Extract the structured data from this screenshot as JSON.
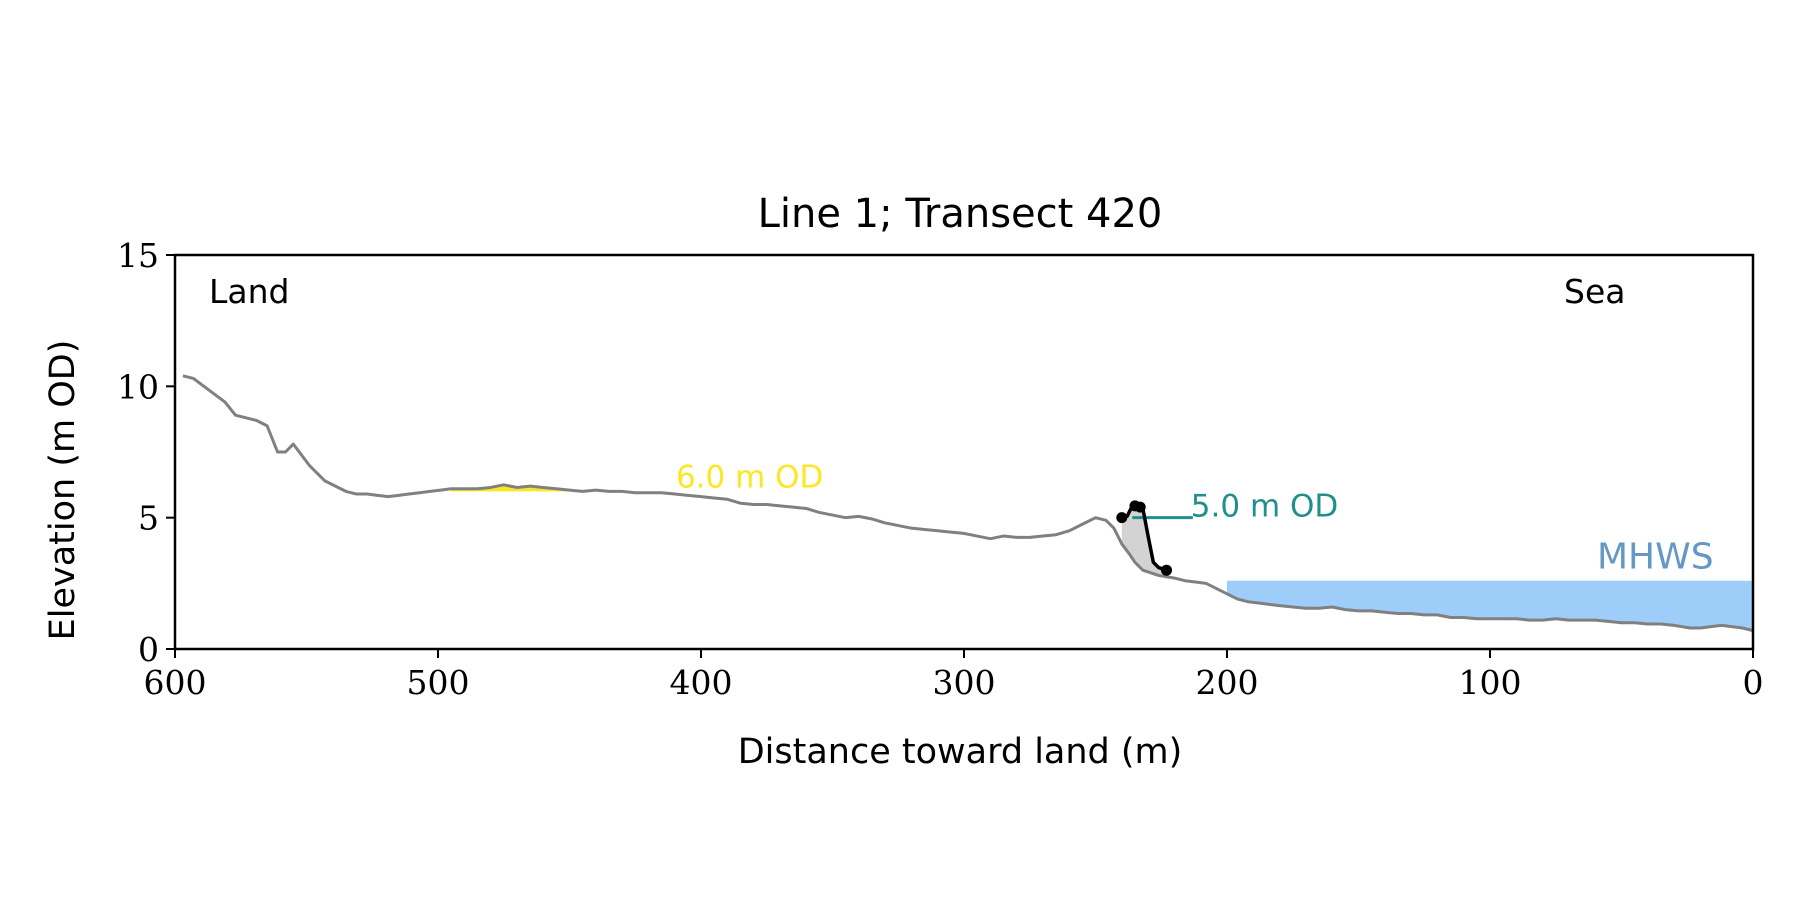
{
  "chart_data": {
    "type": "line",
    "title": "Line 1; Transect 420",
    "xlabel": "Distance toward land (m)",
    "ylabel": "Elevation (m OD)",
    "xlim": [
      600,
      0
    ],
    "ylim": [
      0,
      15
    ],
    "x_ticks": [
      600,
      500,
      400,
      300,
      200,
      100,
      0
    ],
    "y_ticks": [
      0,
      5,
      10,
      15
    ],
    "grid": false,
    "annotations": {
      "land_label": "Land",
      "sea_label": "Sea",
      "mhws_label": "MHWS",
      "upper_level_label": "6.0 m OD",
      "lower_level_label": "5.0 m OD"
    },
    "mhws": {
      "value": 2.6,
      "x_start": 200,
      "x_end": 0
    },
    "upper_level": {
      "value": 6.0,
      "x_start": 495,
      "x_end": 408
    },
    "lower_level": {
      "value": 5.0,
      "x_start": 236,
      "x_end": 213
    },
    "profile": {
      "x": [
        597,
        593,
        589,
        585,
        581,
        577,
        573,
        569,
        565,
        561,
        558,
        555,
        552,
        549,
        546,
        543,
        539,
        535,
        531,
        527,
        523,
        519,
        515,
        511,
        507,
        503,
        499,
        495,
        490,
        485,
        480,
        475,
        470,
        465,
        460,
        455,
        450,
        445,
        440,
        435,
        430,
        425,
        420,
        415,
        410,
        405,
        400,
        395,
        390,
        385,
        380,
        375,
        370,
        365,
        360,
        355,
        350,
        345,
        340,
        335,
        330,
        325,
        320,
        315,
        310,
        305,
        300,
        295,
        290,
        285,
        280,
        275,
        270,
        265,
        260,
        255,
        250,
        246,
        243,
        240,
        237,
        235,
        232,
        229,
        226,
        223,
        220,
        216,
        212,
        208,
        204,
        200,
        196,
        192,
        188,
        184,
        180,
        175,
        170,
        165,
        160,
        155,
        150,
        145,
        140,
        135,
        130,
        125,
        120,
        115,
        110,
        105,
        100,
        95,
        90,
        85,
        80,
        75,
        70,
        65,
        60,
        55,
        50,
        45,
        40,
        35,
        30,
        27,
        24,
        20,
        16,
        12,
        8,
        4,
        0
      ],
      "y": [
        10.4,
        10.3,
        10.0,
        9.7,
        9.4,
        8.9,
        8.8,
        8.7,
        8.5,
        7.5,
        7.5,
        7.8,
        7.4,
        7.0,
        6.7,
        6.4,
        6.2,
        6.0,
        5.9,
        5.9,
        5.85,
        5.8,
        5.85,
        5.9,
        5.95,
        6.0,
        6.05,
        6.1,
        6.1,
        6.1,
        6.15,
        6.25,
        6.15,
        6.2,
        6.15,
        6.1,
        6.05,
        6.0,
        6.05,
        6.0,
        6.0,
        5.95,
        5.95,
        5.95,
        5.9,
        5.85,
        5.8,
        5.75,
        5.7,
        5.55,
        5.5,
        5.5,
        5.45,
        5.4,
        5.35,
        5.2,
        5.1,
        5.0,
        5.05,
        4.95,
        4.8,
        4.7,
        4.6,
        4.55,
        4.5,
        4.45,
        4.4,
        4.3,
        4.2,
        4.3,
        4.25,
        4.25,
        4.3,
        4.35,
        4.5,
        4.75,
        5.0,
        4.9,
        4.6,
        4.0,
        3.6,
        3.3,
        3.0,
        2.9,
        2.8,
        2.75,
        2.7,
        2.6,
        2.55,
        2.5,
        2.3,
        2.1,
        1.9,
        1.8,
        1.75,
        1.7,
        1.65,
        1.6,
        1.55,
        1.55,
        1.6,
        1.5,
        1.45,
        1.45,
        1.4,
        1.35,
        1.35,
        1.3,
        1.3,
        1.2,
        1.2,
        1.15,
        1.15,
        1.15,
        1.15,
        1.1,
        1.1,
        1.15,
        1.1,
        1.1,
        1.1,
        1.05,
        1.0,
        1.0,
        0.95,
        0.95,
        0.9,
        0.85,
        0.8,
        0.8,
        0.85,
        0.9,
        0.85,
        0.8,
        0.7
      ]
    },
    "cliff_line": {
      "x": [
        240,
        238,
        236,
        234,
        232,
        230,
        228,
        226,
        223
      ],
      "y": [
        5.0,
        5.05,
        5.45,
        5.45,
        5.35,
        4.3,
        3.3,
        3.1,
        3.0
      ]
    },
    "cliff_points": {
      "x": [
        240,
        235,
        233,
        223
      ],
      "y": [
        5.0,
        5.45,
        5.4,
        3.0
      ]
    },
    "colors": {
      "profile": "#808080",
      "cliff": "#000000",
      "mhws_fill": "#9fcdfa",
      "mhws_text": "#6598c4",
      "upper_level": "#fde724",
      "lower_level": "#21908c",
      "cliff_shade": "#d3d3d3"
    }
  }
}
